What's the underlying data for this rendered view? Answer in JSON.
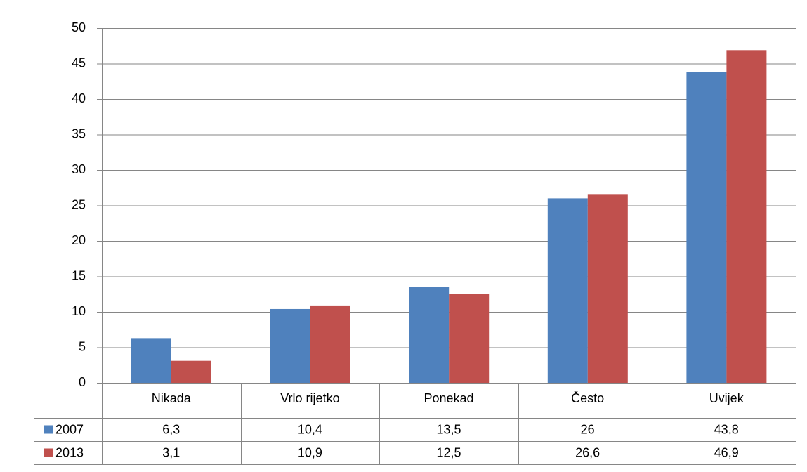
{
  "chart_data": {
    "type": "bar",
    "categories": [
      "Nikada",
      "Vrlo rijetko",
      "Ponekad",
      "Često",
      "Uvijek"
    ],
    "series": [
      {
        "name": "2007",
        "color": "#4f81bd",
        "values": [
          6.3,
          10.4,
          13.5,
          26,
          43.8
        ],
        "value_labels": [
          "6,3",
          "10,4",
          "13,5",
          "26",
          "43,8"
        ]
      },
      {
        "name": "2013",
        "color": "#c0504d",
        "values": [
          3.1,
          10.9,
          12.5,
          26.6,
          46.9
        ],
        "value_labels": [
          "3,1",
          "10,9",
          "12,5",
          "26,6",
          "46,9"
        ]
      }
    ],
    "ylim": [
      0,
      50
    ],
    "yticks": [
      0,
      5,
      10,
      15,
      20,
      25,
      30,
      35,
      40,
      45,
      50
    ],
    "grid": true,
    "data_table": true
  }
}
